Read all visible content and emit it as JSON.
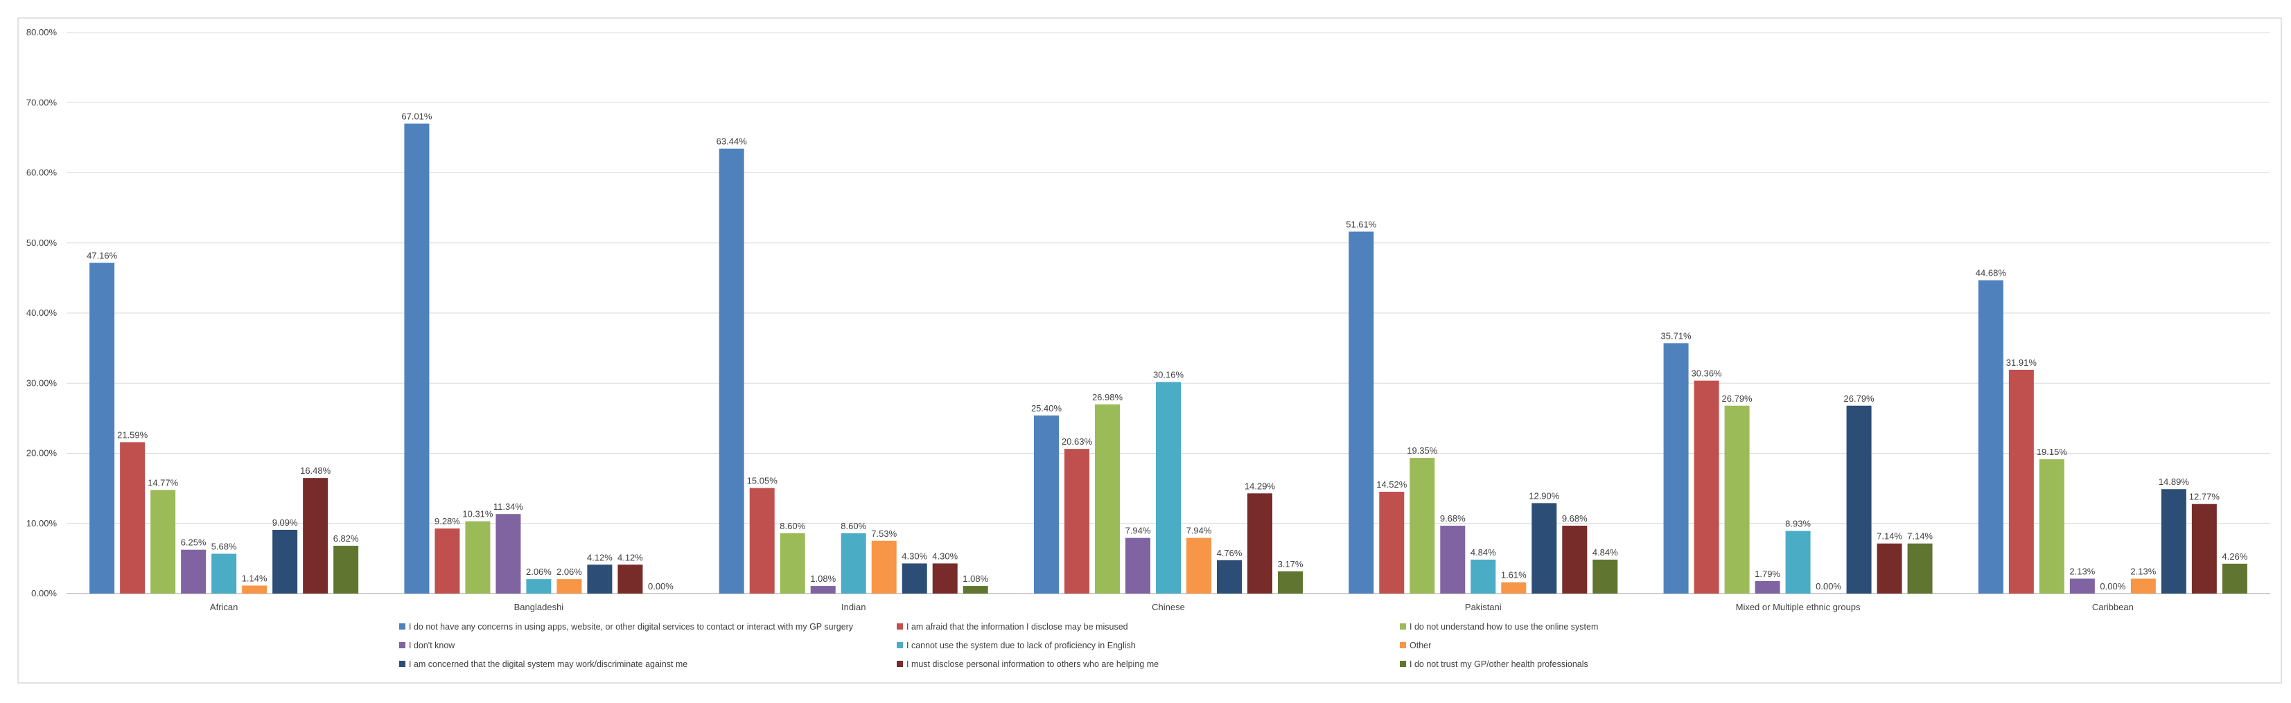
{
  "chart_data": {
    "type": "bar",
    "title": "",
    "xlabel": "",
    "ylabel": "",
    "ylim": [
      0,
      80
    ],
    "y_ticks": [
      "0.00%",
      "10.00%",
      "20.00%",
      "30.00%",
      "40.00%",
      "50.00%",
      "60.00%",
      "70.00%",
      "80.00%"
    ],
    "grid": true,
    "legend_position": "bottom",
    "categories": [
      "African",
      "Bangladeshi",
      "Indian",
      "Chinese",
      "Pakistani",
      "Mixed or Multiple ethnic groups",
      "Caribbean"
    ],
    "series": [
      {
        "name": "I do not have any concerns in using apps, website, or other digital services to contact or interact with my GP surgery",
        "color": "#4F81BD",
        "values": [
          47.16,
          67.01,
          63.44,
          25.4,
          51.61,
          35.71,
          44.68
        ],
        "labels": [
          "47.16%",
          "67.01%",
          "63.44%",
          "25.40%",
          "51.61%",
          "35.71%",
          "44.68%"
        ]
      },
      {
        "name": "I am afraid that the information I disclose may be misused",
        "color": "#C0504D",
        "values": [
          21.59,
          9.28,
          15.05,
          20.63,
          14.52,
          30.36,
          31.91
        ],
        "labels": [
          "21.59%",
          "9.28%",
          "15.05%",
          "20.63%",
          "14.52%",
          "30.36%",
          "31.91%"
        ]
      },
      {
        "name": "I do not understand how to use the online system",
        "color": "#9BBB59",
        "values": [
          14.77,
          10.31,
          8.6,
          26.98,
          19.35,
          26.79,
          19.15
        ],
        "labels": [
          "14.77%",
          "10.31%",
          "8.60%",
          "26.98%",
          "19.35%",
          "26.79%",
          "19.15%"
        ]
      },
      {
        "name": "I don't know",
        "color": "#8064A2",
        "values": [
          6.25,
          11.34,
          1.08,
          7.94,
          9.68,
          1.79,
          2.13
        ],
        "labels": [
          "6.25%",
          "11.34%",
          "1.08%",
          "7.94%",
          "9.68%",
          "1.79%",
          "2.13%"
        ]
      },
      {
        "name": "I cannot use the system due to lack of proficiency in English",
        "color": "#4BACC6",
        "values": [
          5.68,
          2.06,
          8.6,
          30.16,
          4.84,
          8.93,
          0.0
        ],
        "labels": [
          "5.68%",
          "2.06%",
          "8.60%",
          "30.16%",
          "4.84%",
          "8.93%",
          "0.00%"
        ]
      },
      {
        "name": "Other",
        "color": "#F79646",
        "values": [
          1.14,
          2.06,
          7.53,
          7.94,
          1.61,
          0.0,
          2.13
        ],
        "labels": [
          "1.14%",
          "2.06%",
          "7.53%",
          "7.94%",
          "1.61%",
          "0.00%",
          "2.13%"
        ]
      },
      {
        "name": "I am concerned that the digital system may work/discriminate against me",
        "color": "#2C4D75",
        "values": [
          9.09,
          4.12,
          4.3,
          4.76,
          12.9,
          26.79,
          14.89
        ],
        "labels": [
          "9.09%",
          "4.12%",
          "4.30%",
          "4.76%",
          "12.90%",
          "26.79%",
          "14.89%"
        ]
      },
      {
        "name": "I must disclose personal information to others who are helping me",
        "color": "#772C2A",
        "values": [
          16.48,
          4.12,
          4.3,
          14.29,
          9.68,
          7.14,
          12.77
        ],
        "labels": [
          "16.48%",
          "4.12%",
          "4.30%",
          "14.29%",
          "9.68%",
          "7.14%",
          "12.77%"
        ]
      },
      {
        "name": "I do not trust my GP/other health professionals",
        "color": "#5F7530",
        "values": [
          6.82,
          0.0,
          1.08,
          3.17,
          4.84,
          7.14,
          4.26
        ],
        "labels": [
          "6.82%",
          "0.00%",
          "1.08%",
          "3.17%",
          "4.84%",
          "7.14%",
          "4.26%"
        ]
      }
    ]
  }
}
